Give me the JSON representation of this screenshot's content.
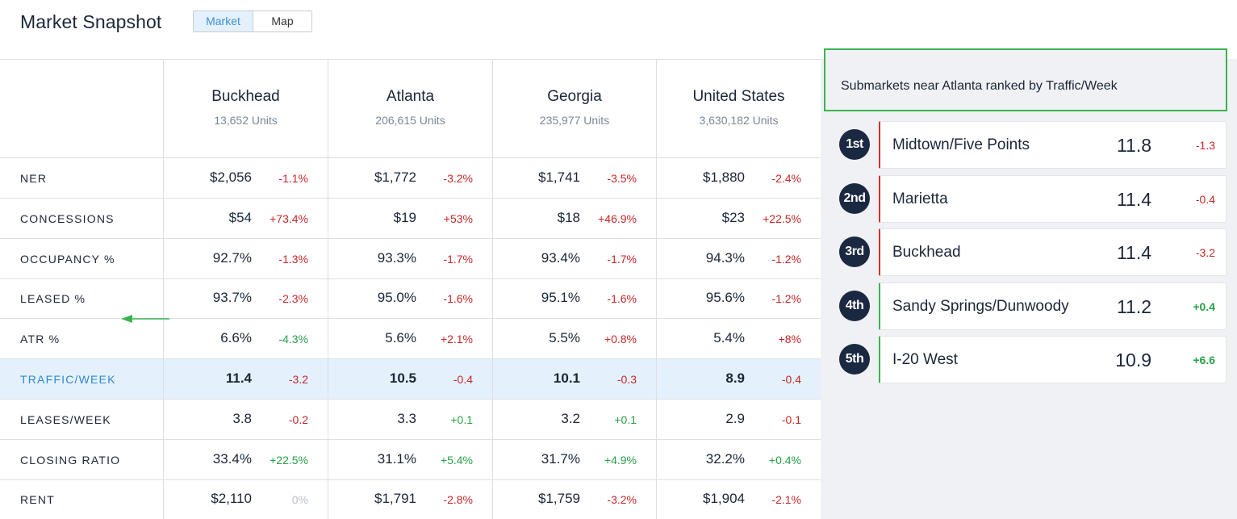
{
  "header": {
    "title": "Market Snapshot",
    "view_toggle": {
      "options": [
        "Market",
        "Map"
      ],
      "selected": "Market"
    }
  },
  "table": {
    "columns": [
      {
        "name": "Buckhead",
        "units": "13,652 Units"
      },
      {
        "name": "Atlanta",
        "units": "206,615 Units"
      },
      {
        "name": "Georgia",
        "units": "235,977 Units"
      },
      {
        "name": "United States",
        "units": "3,630,182 Units"
      }
    ],
    "highlighted_row": "TRAFFIC/WEEK",
    "rows": [
      {
        "label": "NER",
        "cells": [
          {
            "value": "$2,056",
            "change": "-1.1%",
            "dir": "neg"
          },
          {
            "value": "$1,772",
            "change": "-3.2%",
            "dir": "neg"
          },
          {
            "value": "$1,741",
            "change": "-3.5%",
            "dir": "neg"
          },
          {
            "value": "$1,880",
            "change": "-2.4%",
            "dir": "neg"
          }
        ]
      },
      {
        "label": "CONCESSIONS",
        "cells": [
          {
            "value": "$54",
            "change": "+73.4%",
            "dir": "neg"
          },
          {
            "value": "$19",
            "change": "+53%",
            "dir": "neg"
          },
          {
            "value": "$18",
            "change": "+46.9%",
            "dir": "neg"
          },
          {
            "value": "$23",
            "change": "+22.5%",
            "dir": "neg"
          }
        ]
      },
      {
        "label": "OCCUPANCY %",
        "cells": [
          {
            "value": "92.7%",
            "change": "-1.3%",
            "dir": "neg"
          },
          {
            "value": "93.3%",
            "change": "-1.7%",
            "dir": "neg"
          },
          {
            "value": "93.4%",
            "change": "-1.7%",
            "dir": "neg"
          },
          {
            "value": "94.3%",
            "change": "-1.2%",
            "dir": "neg"
          }
        ]
      },
      {
        "label": "LEASED %",
        "cells": [
          {
            "value": "93.7%",
            "change": "-2.3%",
            "dir": "neg"
          },
          {
            "value": "95.0%",
            "change": "-1.6%",
            "dir": "neg"
          },
          {
            "value": "95.1%",
            "change": "-1.6%",
            "dir": "neg"
          },
          {
            "value": "95.6%",
            "change": "-1.2%",
            "dir": "neg"
          }
        ]
      },
      {
        "label": "ATR %",
        "cells": [
          {
            "value": "6.6%",
            "change": "-4.3%",
            "dir": "pos"
          },
          {
            "value": "5.6%",
            "change": "+2.1%",
            "dir": "neg"
          },
          {
            "value": "5.5%",
            "change": "+0.8%",
            "dir": "neg"
          },
          {
            "value": "5.4%",
            "change": "+8%",
            "dir": "neg"
          }
        ]
      },
      {
        "label": "TRAFFIC/WEEK",
        "cells": [
          {
            "value": "11.4",
            "change": "-3.2",
            "dir": "neg"
          },
          {
            "value": "10.5",
            "change": "-0.4",
            "dir": "neg"
          },
          {
            "value": "10.1",
            "change": "-0.3",
            "dir": "neg"
          },
          {
            "value": "8.9",
            "change": "-0.4",
            "dir": "neg"
          }
        ]
      },
      {
        "label": "LEASES/WEEK",
        "cells": [
          {
            "value": "3.8",
            "change": "-0.2",
            "dir": "neg"
          },
          {
            "value": "3.3",
            "change": "+0.1",
            "dir": "pos"
          },
          {
            "value": "3.2",
            "change": "+0.1",
            "dir": "pos"
          },
          {
            "value": "2.9",
            "change": "-0.1",
            "dir": "neg"
          }
        ]
      },
      {
        "label": "CLOSING RATIO",
        "cells": [
          {
            "value": "33.4%",
            "change": "+22.5%",
            "dir": "pos"
          },
          {
            "value": "31.1%",
            "change": "+5.4%",
            "dir": "pos"
          },
          {
            "value": "31.7%",
            "change": "+4.9%",
            "dir": "pos"
          },
          {
            "value": "32.2%",
            "change": "+0.4%",
            "dir": "pos"
          }
        ]
      },
      {
        "label": "RENT",
        "cells": [
          {
            "value": "$2,110",
            "change": "0%",
            "dir": "zero"
          },
          {
            "value": "$1,791",
            "change": "-2.8%",
            "dir": "neg"
          },
          {
            "value": "$1,759",
            "change": "-3.2%",
            "dir": "neg"
          },
          {
            "value": "$1,904",
            "change": "-2.1%",
            "dir": "neg"
          }
        ]
      }
    ]
  },
  "ranking": {
    "title": "Submarkets near Atlanta ranked by Traffic/Week",
    "items": [
      {
        "rank": "1st",
        "name": "Midtown/Five Points",
        "value": "11.8",
        "change": "-1.3",
        "dir": "neg"
      },
      {
        "rank": "2nd",
        "name": "Marietta",
        "value": "11.4",
        "change": "-0.4",
        "dir": "neg"
      },
      {
        "rank": "3rd",
        "name": "Buckhead",
        "value": "11.4",
        "change": "-3.2",
        "dir": "neg"
      },
      {
        "rank": "4th",
        "name": "Sandy Springs/Dunwoody",
        "value": "11.2",
        "change": "+0.4",
        "dir": "pos"
      },
      {
        "rank": "5th",
        "name": "I-20 West",
        "value": "10.9",
        "change": "+6.6",
        "dir": "pos"
      }
    ]
  },
  "colors": {
    "negative": "#c62828",
    "positive": "#27a048",
    "highlight_row": "#e4f1fc",
    "annotation_green": "#3cb34f",
    "badge": "#1b2842"
  }
}
